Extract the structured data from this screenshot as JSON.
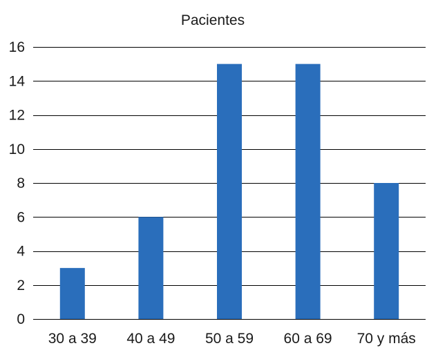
{
  "chart_data": {
    "type": "bar",
    "title": "Pacientes",
    "xlabel": "",
    "ylabel": "",
    "categories": [
      "30 a 39",
      "40 a 49",
      "50 a 59",
      "60 a 69",
      "70 y más"
    ],
    "values": [
      3,
      6,
      15,
      15,
      8
    ],
    "ylim": [
      0,
      16
    ],
    "yticks": [
      0,
      2,
      4,
      6,
      8,
      10,
      12,
      14,
      16
    ],
    "grid": "horizontal",
    "legend": "none",
    "bar_color": "#2a6ebb"
  }
}
